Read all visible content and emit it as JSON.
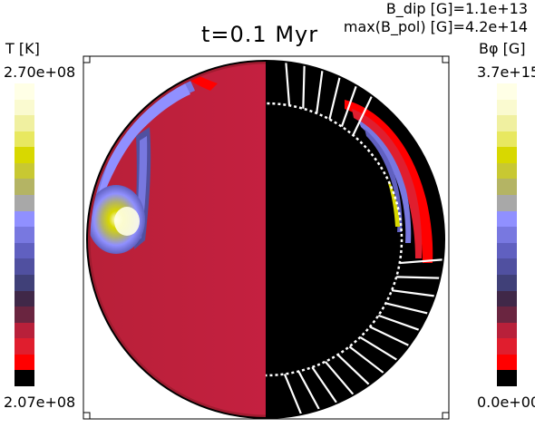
{
  "title": "t=0.1 Myr",
  "annotations": {
    "bdip": "B_dip [G]=1.1e+13",
    "bpol": "max(B_pol) [G]=4.2e+14"
  },
  "left_colorbar": {
    "label": "T [K]",
    "max": "2.70e+08",
    "min": "2.07e+08"
  },
  "right_colorbar": {
    "label": "Bφ [G]",
    "max": "3.7e+15",
    "min": "0.0e+00"
  },
  "colors": {
    "steps": [
      "#000000",
      "#ff0000",
      "#e01e2e",
      "#b8203a",
      "#6a2540",
      "#402848",
      "#404078",
      "#5050a0",
      "#6060c0",
      "#7878e0",
      "#9090ff",
      "#a8a8a8",
      "#b4b464",
      "#c8c832",
      "#d8d800",
      "#e8e860",
      "#f0f0a0",
      "#fafad0",
      "#ffffe6"
    ],
    "interior_red": "#b82038",
    "background": "#000000",
    "field_lines": "#ffffff"
  },
  "chart_data": {
    "type": "heatmap",
    "title": "t=0.1 Myr",
    "panels": [
      {
        "side": "left",
        "quantity": "T",
        "unit": "K",
        "range": [
          207000000.0,
          270000000.0
        ]
      },
      {
        "side": "right",
        "quantity": "Bφ",
        "unit": "G",
        "range": [
          0.0,
          3700000000000000.0
        ]
      }
    ],
    "annotations": {
      "B_dip_G": 11000000000000.0,
      "max_Bpol_G": 420000000000000.0
    }
  }
}
